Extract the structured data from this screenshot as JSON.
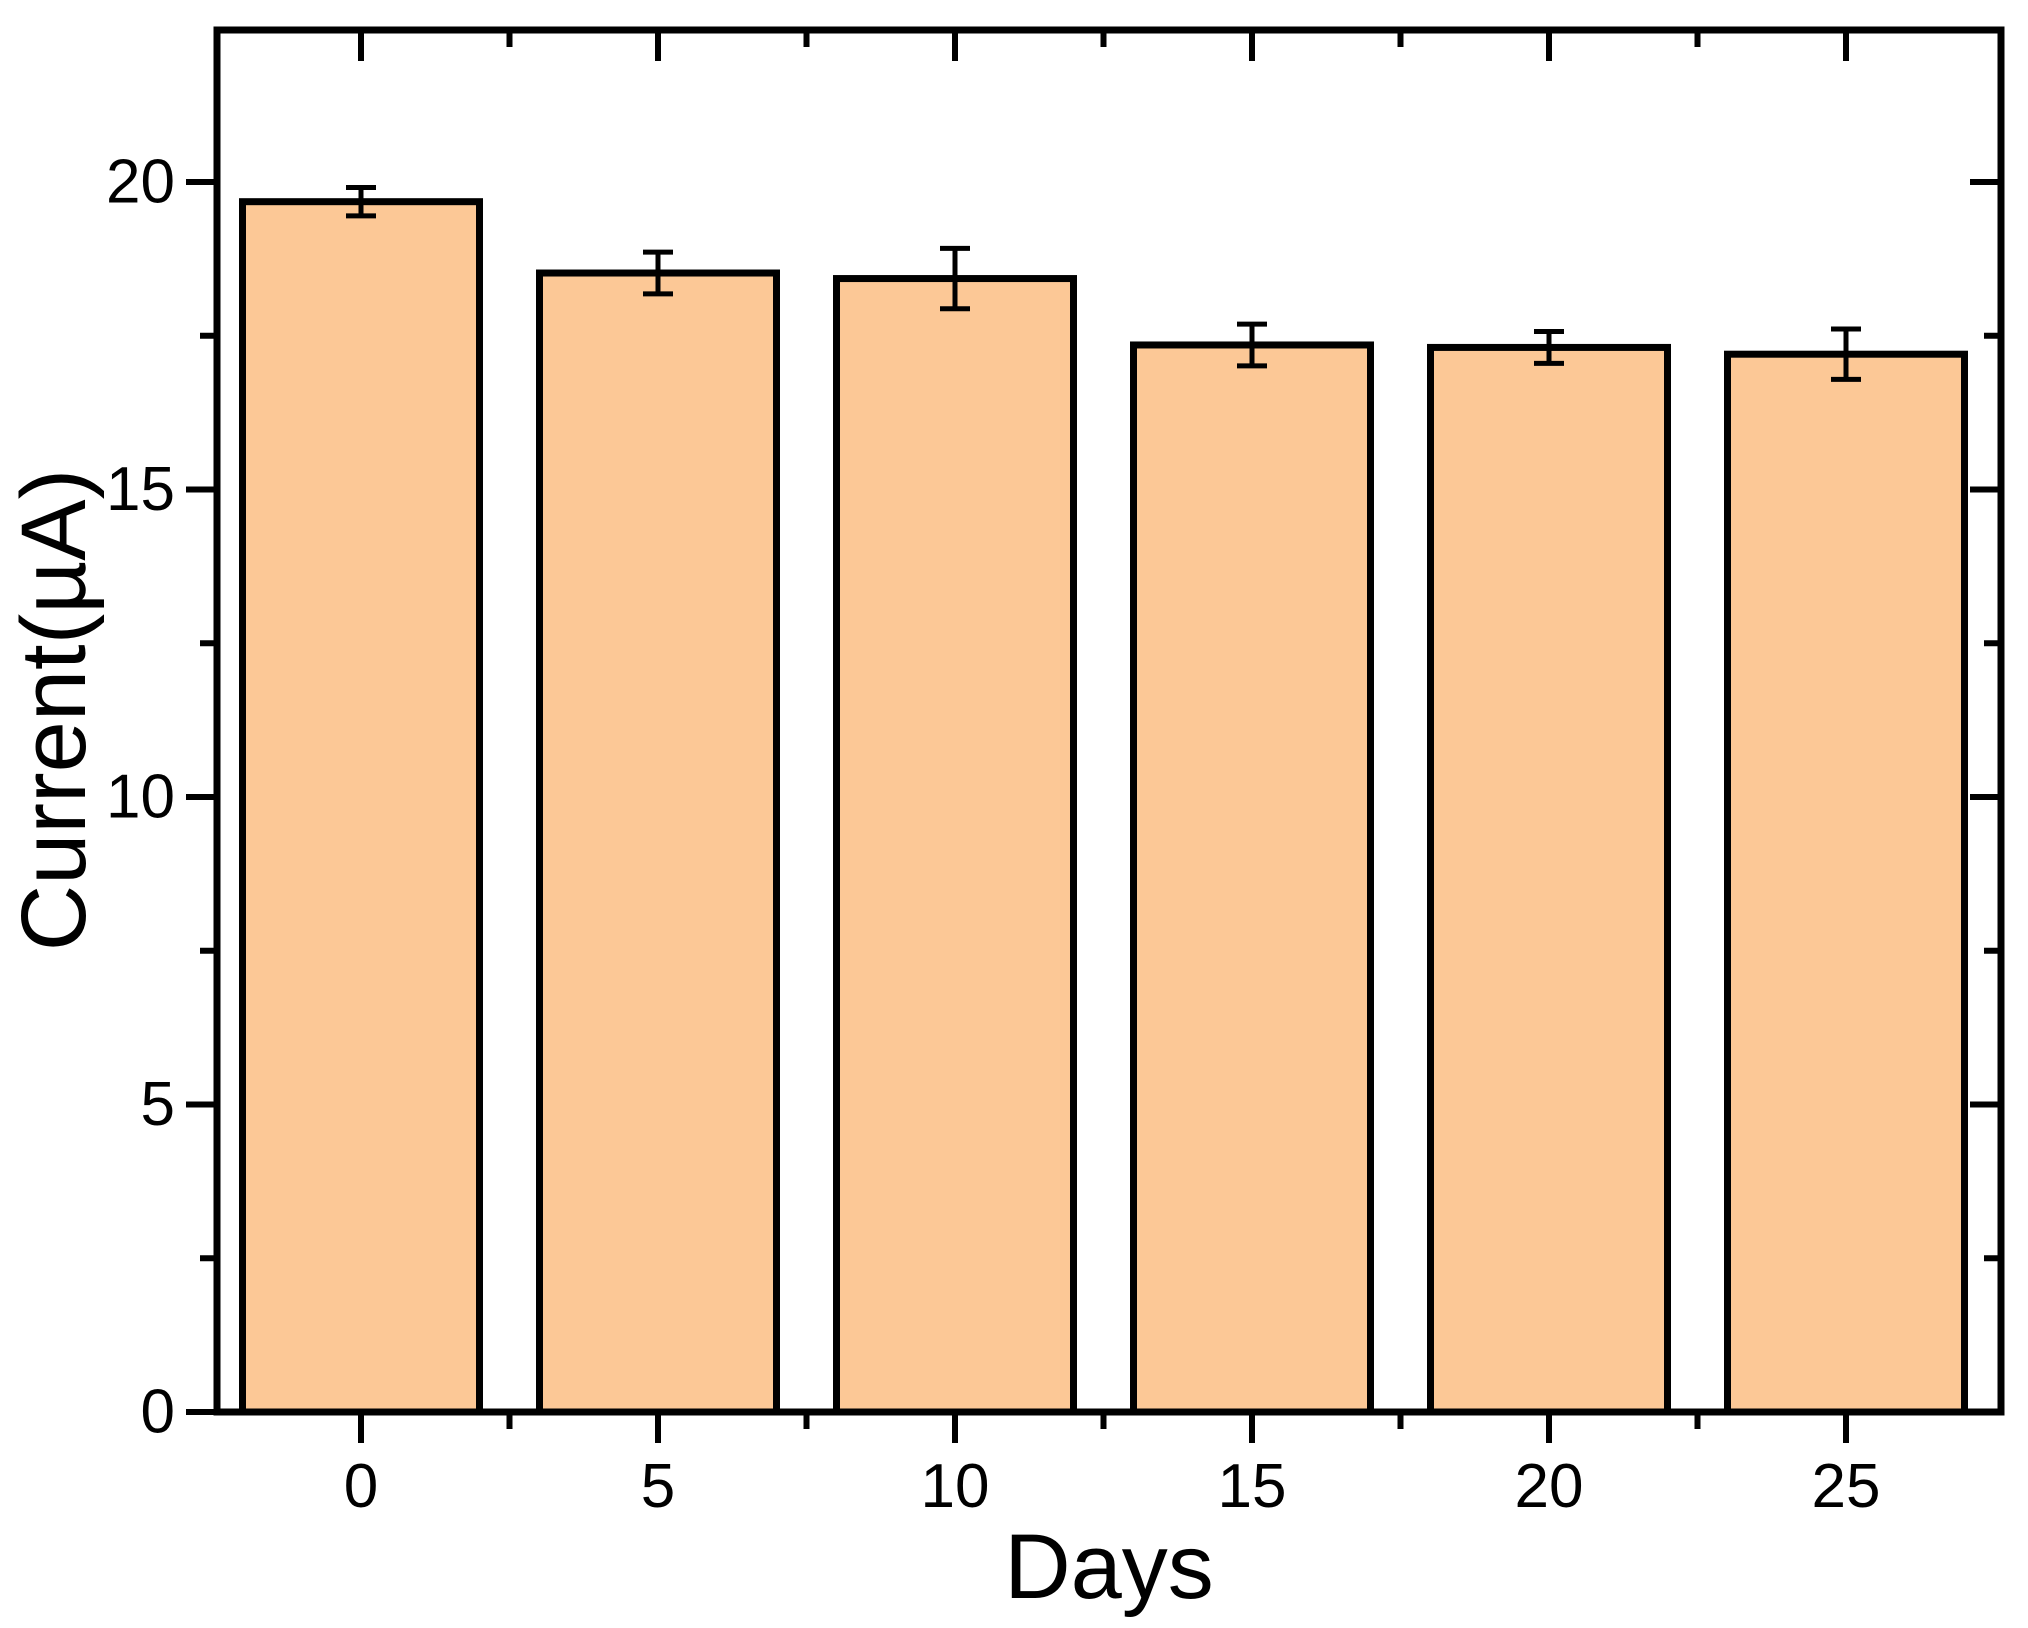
{
  "figure": {
    "background_color": "#FFFFFF",
    "frame_color": "#000000"
  },
  "chart_data": {
    "type": "bar",
    "title": "",
    "xlabel": "Days",
    "ylabel": "Current(µA)",
    "categories": [
      0,
      5,
      10,
      15,
      20,
      25
    ],
    "values": [
      19.68,
      18.52,
      18.43,
      17.35,
      17.31,
      17.2
    ],
    "errors": [
      0.23,
      0.34,
      0.49,
      0.34,
      0.26,
      0.41
    ],
    "bar_fill_color": "#FCC896",
    "bar_edge_color": "#000000",
    "error_bar_color": "#000000",
    "ylim": [
      0,
      22.4
    ],
    "xlim_days": [
      -2.42,
      27.6
    ],
    "y_major_ticks": [
      0,
      5,
      10,
      15,
      20
    ],
    "y_major_tick_labels": [
      "0",
      "5",
      "10",
      "15",
      "20"
    ],
    "y_minor_ticks": [
      2.5,
      7.5,
      12.5,
      17.5
    ],
    "x_major_ticks": [
      0,
      5,
      10,
      15,
      20,
      25
    ],
    "x_major_tick_labels": [
      "0",
      "5",
      "10",
      "15",
      "20",
      "25"
    ],
    "x_minor_ticks": [
      2.5,
      7.5,
      12.5,
      17.5,
      22.5
    ],
    "grid": false,
    "legend_position": "none",
    "error_caps": true
  }
}
